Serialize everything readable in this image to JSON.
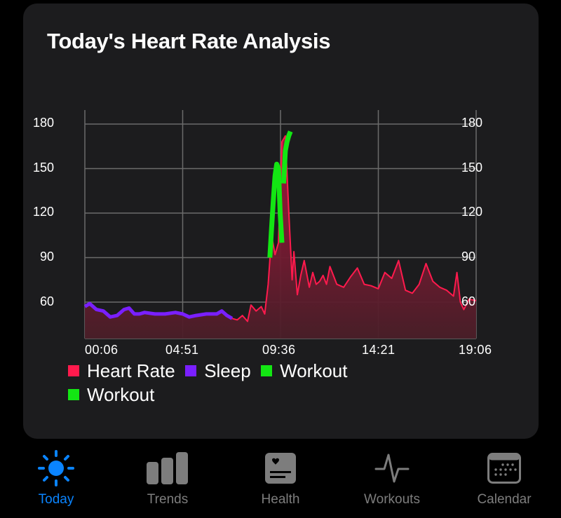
{
  "card": {
    "title": "Today's Heart Rate Analysis"
  },
  "colors": {
    "heart_rate": "#ff1a4d",
    "sleep": "#7a1fff",
    "workout": "#13e613",
    "accent": "#0a84ff",
    "inactive": "#7d7d7d",
    "card_bg": "#1c1c1e"
  },
  "chart_data": {
    "type": "area",
    "title": "Today's Heart Rate Analysis",
    "xlabel": "",
    "ylabel": "",
    "x_ticks": [
      "00:06",
      "04:51",
      "09:36",
      "14:21",
      "19:06"
    ],
    "y_ticks": [
      60,
      90,
      120,
      150,
      180
    ],
    "ylim": [
      35,
      190
    ],
    "xlim": [
      "00:06",
      "19:06"
    ],
    "grid": true,
    "legend_position": "bottom",
    "legend": [
      "Heart Rate",
      "Sleep",
      "Workout",
      "Workout"
    ],
    "series": [
      {
        "name": "Sleep",
        "color": "#7a1fff",
        "x": [
          "00:06",
          "00:20",
          "00:40",
          "01:00",
          "01:20",
          "01:40",
          "02:00",
          "02:15",
          "02:30",
          "02:45",
          "03:00",
          "03:30",
          "04:00",
          "04:30",
          "04:51",
          "05:10",
          "05:30",
          "06:00",
          "06:30",
          "06:45",
          "07:00",
          "07:15"
        ],
        "values": [
          57,
          59,
          55,
          54,
          50,
          51,
          55,
          56,
          52,
          52,
          53,
          52,
          52,
          53,
          52,
          50,
          51,
          52,
          52,
          54,
          51,
          49
        ]
      },
      {
        "name": "Heart Rate",
        "color": "#ff1a4d",
        "x": [
          "07:15",
          "07:30",
          "07:45",
          "08:00",
          "08:10",
          "08:25",
          "08:40",
          "08:50",
          "09:00",
          "09:10",
          "09:20",
          "09:30",
          "09:40",
          "09:50",
          "10:00",
          "10:10",
          "10:15",
          "10:25",
          "10:35",
          "10:45",
          "11:00",
          "11:10",
          "11:20",
          "11:30",
          "11:40",
          "11:50",
          "12:00",
          "12:20",
          "12:40",
          "13:00",
          "13:20",
          "13:40",
          "14:00",
          "14:21",
          "14:40",
          "15:00",
          "15:20",
          "15:40",
          "16:00",
          "16:20",
          "16:40",
          "17:00",
          "17:20",
          "17:40",
          "18:00",
          "18:10",
          "18:20",
          "18:30",
          "18:45",
          "19:06"
        ],
        "values": [
          49,
          48,
          51,
          47,
          58,
          54,
          57,
          52,
          72,
          105,
          92,
          100,
          168,
          172,
          122,
          75,
          94,
          65,
          78,
          88,
          70,
          80,
          72,
          74,
          78,
          72,
          84,
          72,
          70,
          77,
          83,
          72,
          71,
          69,
          80,
          76,
          88,
          68,
          66,
          72,
          86,
          74,
          70,
          68,
          64,
          80,
          60,
          55,
          62,
          61
        ]
      },
      {
        "name": "Workout",
        "color": "#13e613",
        "x": [
          "09:05",
          "09:10",
          "09:15",
          "09:20",
          "09:25",
          "09:30",
          "09:35",
          "09:40"
        ],
        "values": [
          90,
          110,
          128,
          145,
          153,
          150,
          120,
          100
        ]
      },
      {
        "name": "Workout",
        "color": "#13e613",
        "x": [
          "09:45",
          "09:50",
          "09:55",
          "10:00",
          "10:05"
        ],
        "values": [
          140,
          162,
          168,
          172,
          175
        ]
      }
    ]
  },
  "tabs": [
    {
      "label": "Today",
      "icon": "sun-icon",
      "active": true
    },
    {
      "label": "Trends",
      "icon": "bar-chart-icon",
      "active": false
    },
    {
      "label": "Health",
      "icon": "health-record-icon",
      "active": false
    },
    {
      "label": "Workouts",
      "icon": "waveform-icon",
      "active": false
    },
    {
      "label": "Calendar",
      "icon": "calendar-icon",
      "active": false
    }
  ]
}
